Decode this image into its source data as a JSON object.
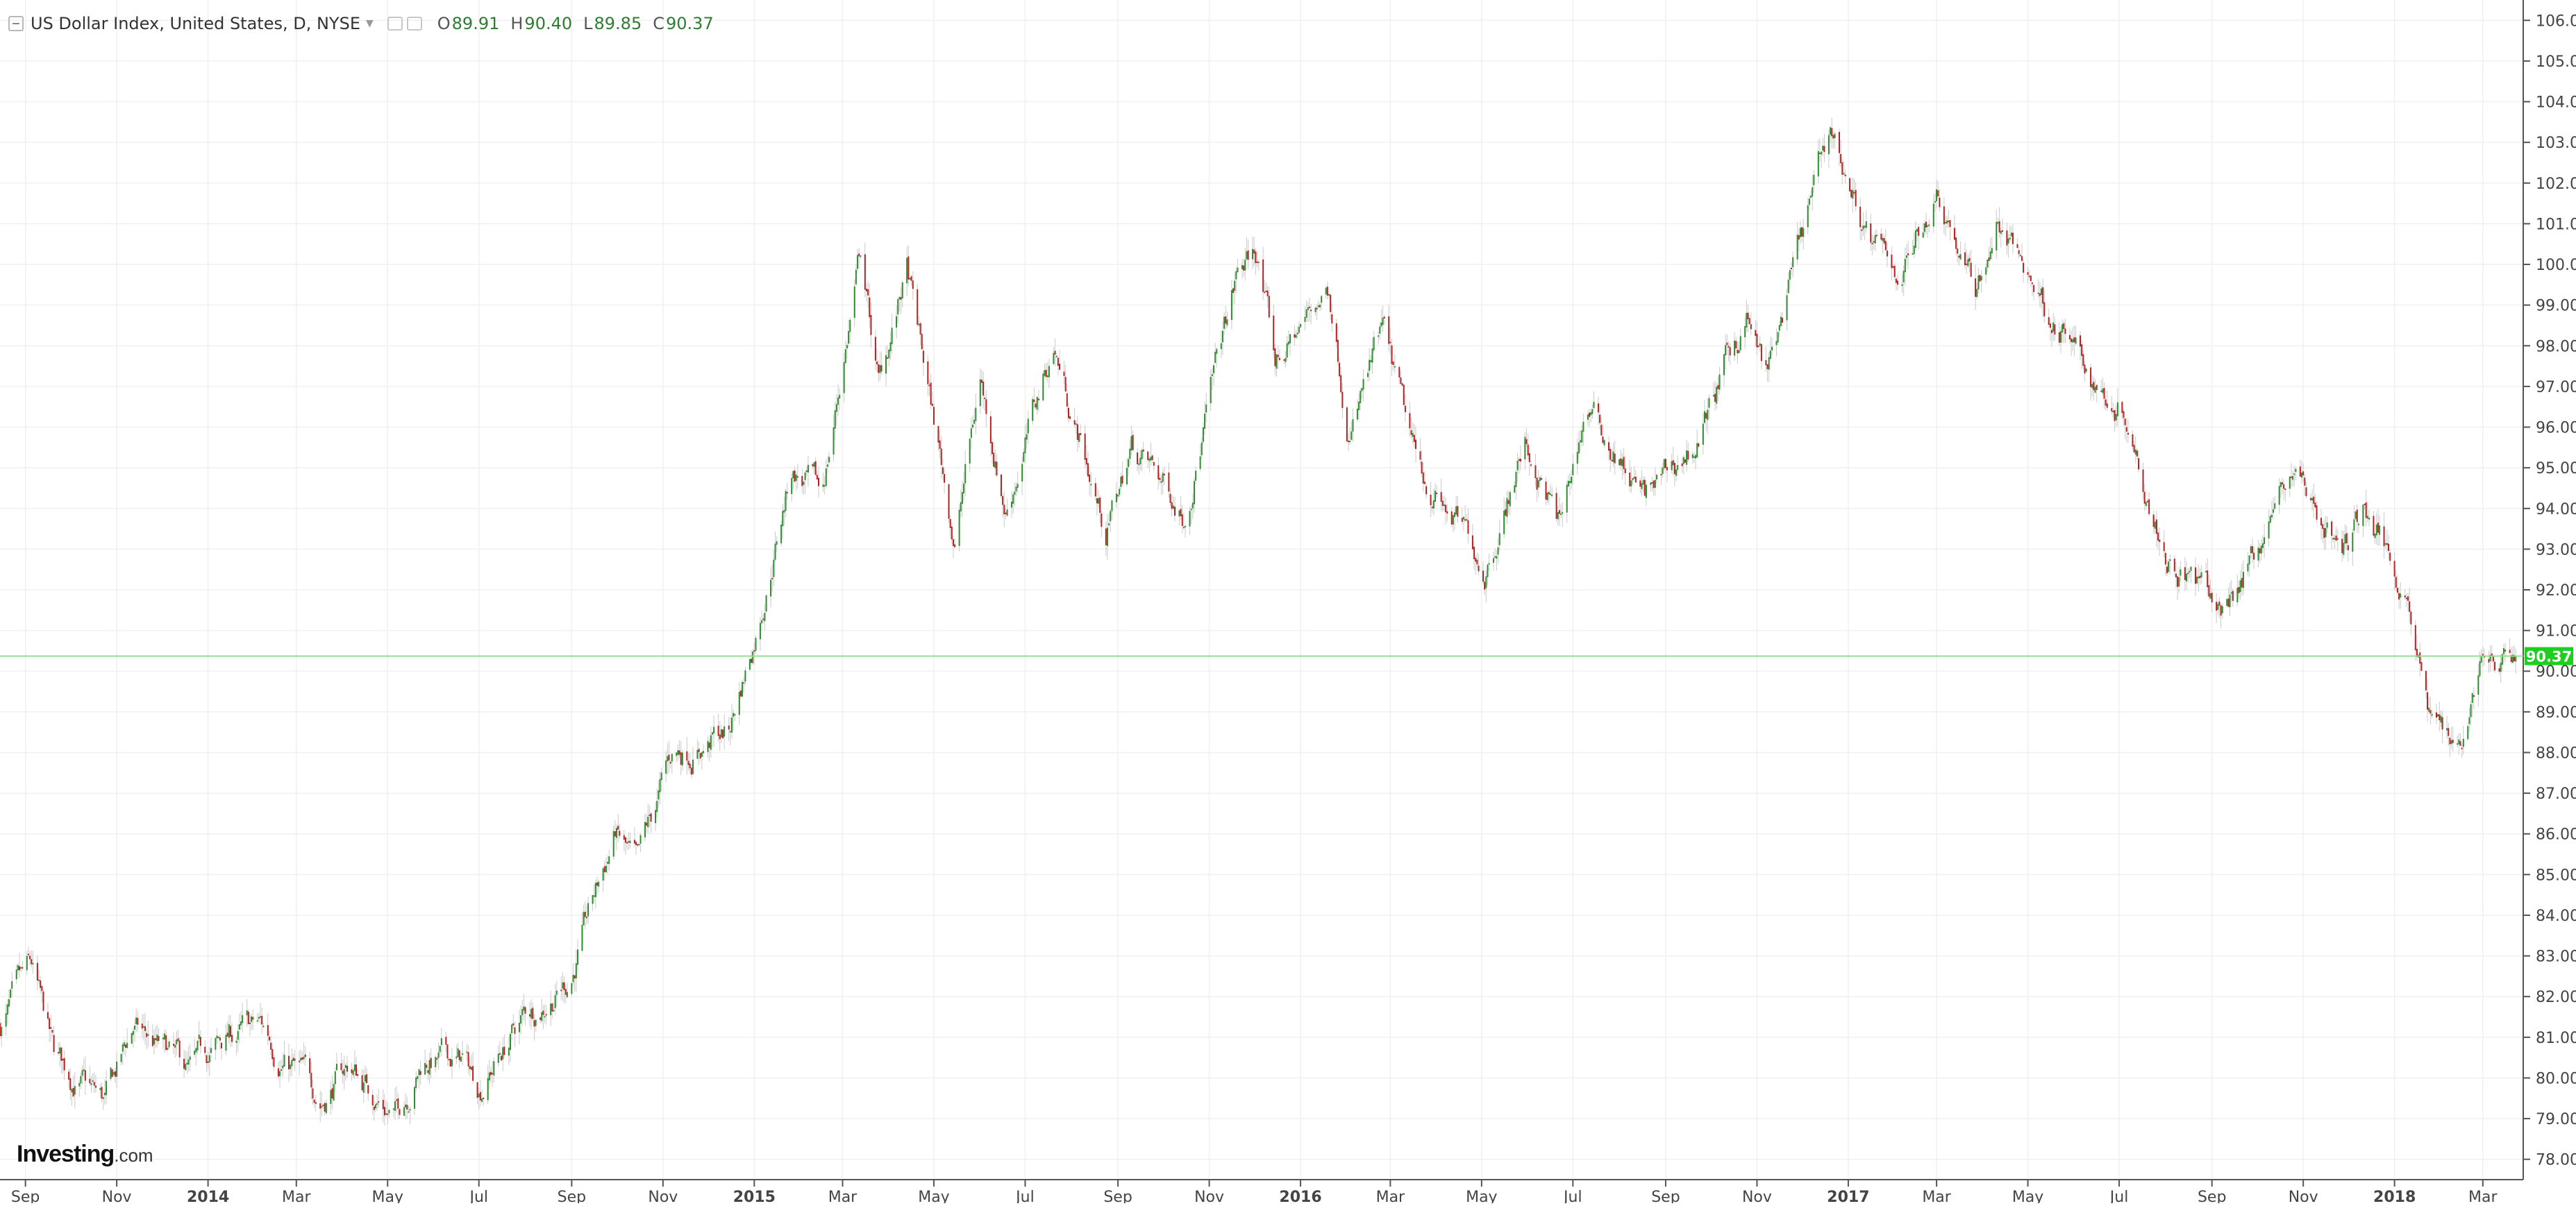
{
  "legend": {
    "title": "US Dollar Index, United States, D, NYSE",
    "open_label": "O",
    "open": "89.91",
    "high_label": "H",
    "high": "90.40",
    "low_label": "L",
    "low": "89.85",
    "close_label": "C",
    "close": "90.37"
  },
  "brand": {
    "name": "Investing",
    "suffix": ".com"
  },
  "icons": {
    "collapse": "collapse-icon",
    "caret": "caret-down-icon",
    "settings": "settings-icon",
    "visibility": "visibility-icon"
  },
  "colors": {
    "up": "#2e8b2e",
    "down": "#b22222",
    "last_price_line": "#8fe08f",
    "last_price_badge": "#1fcf1f",
    "grid": "#f0f0f0",
    "axis_text": "#444444"
  },
  "chart_data": {
    "type": "candlestick",
    "title": "US Dollar Index, United States, D, NYSE",
    "xlabel": "",
    "ylabel": "",
    "ylim": [
      77.5,
      106.5
    ],
    "xlim": [
      "2013-08-15",
      "2018-03-28"
    ],
    "grid": true,
    "last_price": 90.37,
    "last_price_label": "90.37",
    "x_ticks": [
      {
        "label": "Sep",
        "date": "2013-09-01"
      },
      {
        "label": "Nov",
        "date": "2013-11-01"
      },
      {
        "label": "2014",
        "date": "2014-01-01"
      },
      {
        "label": "Mar",
        "date": "2014-03-01"
      },
      {
        "label": "May",
        "date": "2014-05-01"
      },
      {
        "label": "Jul",
        "date": "2014-07-01"
      },
      {
        "label": "Sep",
        "date": "2014-09-01"
      },
      {
        "label": "Nov",
        "date": "2014-11-01"
      },
      {
        "label": "2015",
        "date": "2015-01-01"
      },
      {
        "label": "Mar",
        "date": "2015-03-01"
      },
      {
        "label": "May",
        "date": "2015-05-01"
      },
      {
        "label": "Jul",
        "date": "2015-07-01"
      },
      {
        "label": "Sep",
        "date": "2015-09-01"
      },
      {
        "label": "Nov",
        "date": "2015-11-01"
      },
      {
        "label": "2016",
        "date": "2016-01-01"
      },
      {
        "label": "Mar",
        "date": "2016-03-01"
      },
      {
        "label": "May",
        "date": "2016-05-01"
      },
      {
        "label": "Jul",
        "date": "2016-07-01"
      },
      {
        "label": "Sep",
        "date": "2016-09-01"
      },
      {
        "label": "Nov",
        "date": "2016-11-01"
      },
      {
        "label": "2017",
        "date": "2017-01-01"
      },
      {
        "label": "Mar",
        "date": "2017-03-01"
      },
      {
        "label": "May",
        "date": "2017-05-01"
      },
      {
        "label": "Jul",
        "date": "2017-07-01"
      },
      {
        "label": "Sep",
        "date": "2017-09-01"
      },
      {
        "label": "Nov",
        "date": "2017-11-01"
      },
      {
        "label": "2018",
        "date": "2018-01-01"
      },
      {
        "label": "Mar",
        "date": "2018-03-01"
      }
    ],
    "y_ticks": [
      "78.00",
      "79.00",
      "80.00",
      "81.00",
      "82.00",
      "83.00",
      "84.00",
      "85.00",
      "86.00",
      "87.00",
      "88.00",
      "89.00",
      "90.00",
      "91.00",
      "92.00",
      "93.00",
      "94.00",
      "95.00",
      "96.00",
      "97.00",
      "98.00",
      "99.00",
      "100.00",
      "101.00",
      "102.00",
      "103.00",
      "104.00",
      "105.00",
      "106.00"
    ],
    "close_path": [
      {
        "date": "2013-08-15",
        "close": 81.3
      },
      {
        "date": "2013-09-05",
        "close": 82.5
      },
      {
        "date": "2013-09-20",
        "close": 80.4
      },
      {
        "date": "2013-10-24",
        "close": 79.3
      },
      {
        "date": "2013-11-12",
        "close": 81.2
      },
      {
        "date": "2013-12-20",
        "close": 80.0
      },
      {
        "date": "2014-01-15",
        "close": 81.0
      },
      {
        "date": "2014-02-05",
        "close": 81.2
      },
      {
        "date": "2014-03-17",
        "close": 79.5
      },
      {
        "date": "2014-04-05",
        "close": 80.3
      },
      {
        "date": "2014-05-06",
        "close": 79.1
      },
      {
        "date": "2014-05-25",
        "close": 80.5
      },
      {
        "date": "2014-06-20",
        "close": 80.4
      },
      {
        "date": "2014-07-01",
        "close": 79.8
      },
      {
        "date": "2014-07-31",
        "close": 81.5
      },
      {
        "date": "2014-08-31",
        "close": 82.5
      },
      {
        "date": "2014-09-30",
        "close": 86.0
      },
      {
        "date": "2014-10-15",
        "close": 85.0
      },
      {
        "date": "2014-11-07",
        "close": 87.9
      },
      {
        "date": "2014-12-15",
        "close": 88.5
      },
      {
        "date": "2015-01-02",
        "close": 91.0
      },
      {
        "date": "2015-01-26",
        "close": 95.0
      },
      {
        "date": "2015-02-15",
        "close": 94.2
      },
      {
        "date": "2015-03-13",
        "close": 100.3
      },
      {
        "date": "2015-03-25",
        "close": 97.0
      },
      {
        "date": "2015-04-13",
        "close": 99.8
      },
      {
        "date": "2015-05-15",
        "close": 93.2
      },
      {
        "date": "2015-06-01",
        "close": 97.2
      },
      {
        "date": "2015-06-18",
        "close": 94.0
      },
      {
        "date": "2015-07-20",
        "close": 98.0
      },
      {
        "date": "2015-08-24",
        "close": 93.4
      },
      {
        "date": "2015-09-10",
        "close": 95.5
      },
      {
        "date": "2015-10-15",
        "close": 94.0
      },
      {
        "date": "2015-11-20",
        "close": 99.7
      },
      {
        "date": "2015-12-03",
        "close": 100.3
      },
      {
        "date": "2015-12-15",
        "close": 97.5
      },
      {
        "date": "2016-01-20",
        "close": 99.5
      },
      {
        "date": "2016-02-03",
        "close": 96.0
      },
      {
        "date": "2016-02-25",
        "close": 98.2
      },
      {
        "date": "2016-03-18",
        "close": 95.0
      },
      {
        "date": "2016-05-03",
        "close": 92.6
      },
      {
        "date": "2016-05-30",
        "close": 95.6
      },
      {
        "date": "2016-06-23",
        "close": 93.5
      },
      {
        "date": "2016-07-10",
        "close": 96.5
      },
      {
        "date": "2016-08-18",
        "close": 94.2
      },
      {
        "date": "2016-09-20",
        "close": 95.5
      },
      {
        "date": "2016-10-25",
        "close": 98.7
      },
      {
        "date": "2016-11-08",
        "close": 97.2
      },
      {
        "date": "2016-12-20",
        "close": 103.3
      },
      {
        "date": "2017-01-18",
        "close": 100.3
      },
      {
        "date": "2017-02-05",
        "close": 99.8
      },
      {
        "date": "2017-03-02",
        "close": 102.0
      },
      {
        "date": "2017-03-27",
        "close": 99.3
      },
      {
        "date": "2017-04-10",
        "close": 101.0
      },
      {
        "date": "2017-05-10",
        "close": 99.2
      },
      {
        "date": "2017-06-15",
        "close": 97.0
      },
      {
        "date": "2017-07-05",
        "close": 96.5
      },
      {
        "date": "2017-08-02",
        "close": 93.0
      },
      {
        "date": "2017-09-08",
        "close": 91.4
      },
      {
        "date": "2017-10-26",
        "close": 95.0
      },
      {
        "date": "2017-11-27",
        "close": 92.9
      },
      {
        "date": "2017-12-12",
        "close": 94.0
      },
      {
        "date": "2018-01-10",
        "close": 92.0
      },
      {
        "date": "2018-01-25",
        "close": 88.7
      },
      {
        "date": "2018-02-15",
        "close": 88.4
      },
      {
        "date": "2018-03-01",
        "close": 90.5
      },
      {
        "date": "2018-03-12",
        "close": 89.8
      },
      {
        "date": "2018-03-23",
        "close": 90.37
      }
    ]
  }
}
